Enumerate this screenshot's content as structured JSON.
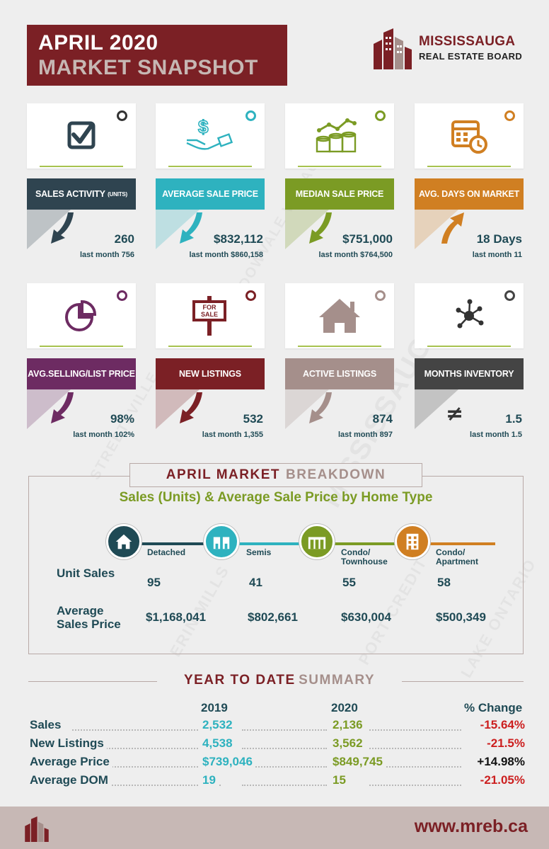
{
  "header": {
    "line1": "APRIL 2020",
    "line2": "MARKET SNAPSHOT"
  },
  "brand": {
    "name": "MISSISSAUGA",
    "sub": "REAL ESTATE BOARD"
  },
  "colors": {
    "maroon": "#7b2025",
    "navy": "#1f4a55",
    "teal": "#2eb2bf",
    "green": "#7b9b24",
    "orange": "#d07f22",
    "purple": "#6d2b62",
    "taupe": "#a58f8b",
    "dark": "#444444",
    "negative": "#cc1f1f"
  },
  "cards": [
    {
      "title": "SALES ACTIVITY",
      "title_small": "(UNITS)",
      "value": "260",
      "last": "last month 756",
      "icon": "checkbox-icon",
      "color": "#2f4450",
      "trend": "down"
    },
    {
      "title": "AVERAGE SALE PRICE",
      "title_small": "",
      "value": "$832,112",
      "last": "last month $860,158",
      "icon": "money-hand-icon",
      "color": "#2eb2bf",
      "trend": "down"
    },
    {
      "title": "MEDIAN SALE PRICE",
      "title_small": "",
      "value": "$751,000",
      "last": "last month $764,500",
      "icon": "coins-chart-icon",
      "color": "#7b9b24",
      "trend": "down"
    },
    {
      "title": "AVG. DAYS ON MARKET",
      "title_small": "",
      "value": "18 Days",
      "last": "last month 11",
      "icon": "calendar-clock-icon",
      "color": "#d07f22",
      "trend": "up"
    },
    {
      "title": "AVG.SELLING/LIST PRICE",
      "title_small": "",
      "value": "98%",
      "last": "last month 102%",
      "icon": "pie-chart-icon",
      "color": "#6d2b62",
      "trend": "down"
    },
    {
      "title": "NEW LISTINGS",
      "title_small": "",
      "value": "532",
      "last": "last month 1,355",
      "icon": "for-sale-sign-icon",
      "color": "#7b2025",
      "trend": "down"
    },
    {
      "title": "ACTIVE LISTINGS",
      "title_small": "",
      "value": "874",
      "last": "last month 897",
      "icon": "house-icon",
      "color": "#a58f8b",
      "trend": "down"
    },
    {
      "title": "MONTHS INVENTORY",
      "title_small": "",
      "value": "1.5",
      "last": "last month 1.5",
      "icon": "network-icon",
      "color": "#444444",
      "trend": "neq"
    }
  ],
  "for_sale_sign": "FOR SALE",
  "breakdown": {
    "title_a": "APRIL MARKET",
    "title_b": "BREAKDOWN",
    "subtitle": "Sales (Units) & Average Sale Price by Home Type",
    "row1_label": "Unit Sales",
    "row2_label": "Average Sales Price",
    "types": [
      {
        "label": "Detached",
        "units": "95",
        "price": "$1,168,041",
        "icon": "house-icon",
        "color": "#1f4a55"
      },
      {
        "label": "Semis",
        "units": "41",
        "price": "$802,661",
        "icon": "semi-icon",
        "color": "#2eb2bf"
      },
      {
        "label": "Condo/ Townhouse",
        "units": "55",
        "price": "$630,004",
        "icon": "townhouse-icon",
        "color": "#7b9b24"
      },
      {
        "label": "Condo/ Apartment",
        "units": "58",
        "price": "$500,349",
        "icon": "apartment-icon",
        "color": "#d07f22"
      }
    ]
  },
  "ytd": {
    "title_a": "YEAR TO DATE",
    "title_b": "SUMMARY",
    "col_2019": "2019",
    "col_2020": "2020",
    "col_change": "% Change",
    "rows": [
      {
        "label": "Sales",
        "v2019": "2,532",
        "v2020": "2,136",
        "change": "-15.64%",
        "positive": false
      },
      {
        "label": "New Listings",
        "v2019": "4,538",
        "v2020": "3,562",
        "change": "-21.5%",
        "positive": false
      },
      {
        "label": "Average Price",
        "v2019": "$739,046",
        "v2020": "$849,745",
        "change": "+14.98%",
        "positive": true
      },
      {
        "label": "Average DOM",
        "v2019": "19",
        "v2020": "15",
        "change": "-21.05%",
        "positive": false
      }
    ]
  },
  "footer": {
    "url": "www.mreb.ca"
  },
  "watermarks": [
    "MEADOWVALE VILLAGE",
    "MISSISSAUGA",
    "STREETSVILLE",
    "ERIN MILLS",
    "PORT CREDIT",
    "LAKE ONTARIO"
  ]
}
